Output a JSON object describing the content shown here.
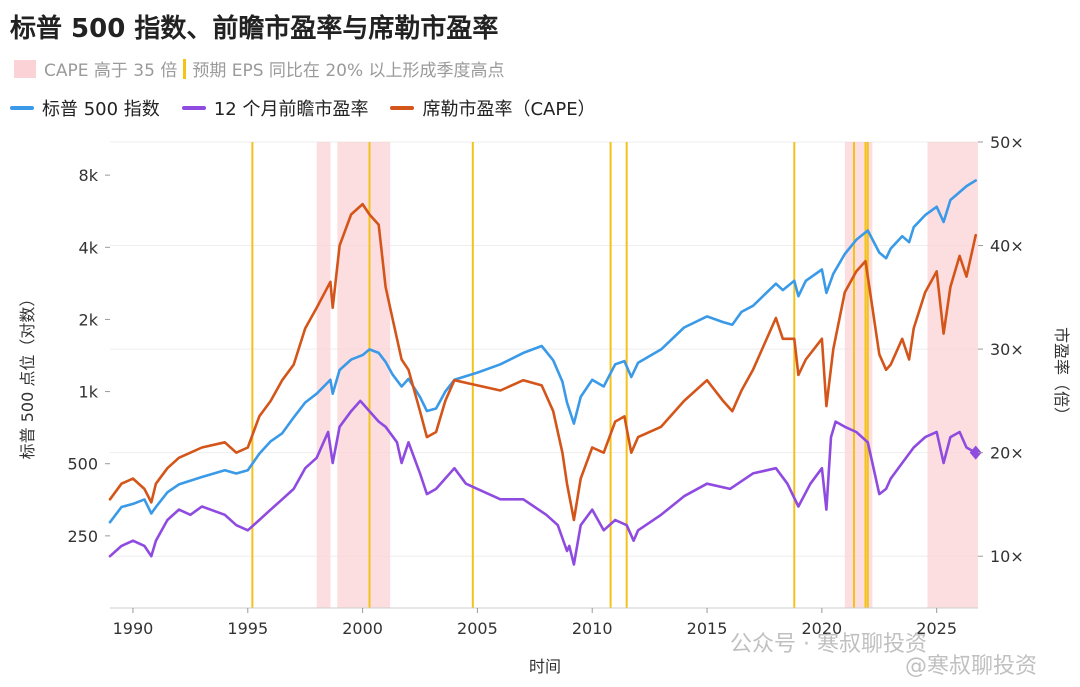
{
  "colors": {
    "sp500": "#3a9ae8",
    "forward_pe": "#8f4be0",
    "cape": "#d4551a",
    "cape_shade": "#fbd3d6",
    "eps_marker": "#f3c21b"
  },
  "watermark": {
    "line1": "公众号 · 寒叔聊投资",
    "line2": "@寒叔聊投资"
  },
  "chart_data": {
    "type": "line",
    "title": "标普 500 指数、前瞻市盈率与席勒市盈率",
    "subtitle": {
      "shade_label": "CAPE 高于 35 倍",
      "marker_label": "预期 EPS 同比在 20% 以上形成季度高点"
    },
    "xlabel": "时间",
    "ylabel_left": "标普 500 点位（对数）",
    "ylabel_right": "市盈率（倍）",
    "xlim": [
      1989.0,
      2026.8
    ],
    "y_left": {
      "scale": "log",
      "lim": [
        125,
        11000
      ],
      "ticks": [
        250,
        500,
        1000,
        2000,
        4000,
        8000
      ],
      "tick_labels": [
        "250",
        "500",
        "1k",
        "2k",
        "4k",
        "8k"
      ]
    },
    "y_right": {
      "scale": "linear",
      "lim": [
        5,
        50
      ],
      "ticks": [
        10,
        20,
        30,
        40,
        50
      ],
      "tick_labels": [
        "10×",
        "20×",
        "30×",
        "40×",
        "50×"
      ]
    },
    "x_ticks": [
      1990,
      1995,
      2000,
      2005,
      2010,
      2015,
      2020,
      2025
    ],
    "x_tick_labels": [
      "1990",
      "1995",
      "2000",
      "2005",
      "2010",
      "2015",
      "2020",
      "2025"
    ],
    "cape_above_35_periods": [
      [
        1998.0,
        1998.6
      ],
      [
        1998.9,
        2001.2
      ],
      [
        2021.0,
        2022.2
      ],
      [
        2024.6,
        2026.8
      ]
    ],
    "eps_peak_markers": [
      1995.2,
      2000.3,
      2004.8,
      2010.8,
      2011.5,
      2018.8,
      2021.4,
      2021.9,
      2022.0
    ],
    "legend": [
      "标普 500 指数",
      "12 个月前瞻市盈率",
      "席勒市盈率（CAPE）"
    ],
    "series": [
      {
        "name": "标普 500 指数",
        "axis": "left",
        "color_key": "sp500",
        "points": [
          [
            1989.0,
            285
          ],
          [
            1989.5,
            330
          ],
          [
            1990.0,
            340
          ],
          [
            1990.5,
            355
          ],
          [
            1990.8,
            310
          ],
          [
            1991.0,
            330
          ],
          [
            1991.5,
            380
          ],
          [
            1992.0,
            410
          ],
          [
            1993.0,
            440
          ],
          [
            1994.0,
            470
          ],
          [
            1994.5,
            455
          ],
          [
            1995.0,
            470
          ],
          [
            1995.5,
            550
          ],
          [
            1996.0,
            620
          ],
          [
            1996.5,
            670
          ],
          [
            1997.0,
            780
          ],
          [
            1997.5,
            900
          ],
          [
            1998.0,
            980
          ],
          [
            1998.6,
            1120
          ],
          [
            1998.7,
            980
          ],
          [
            1999.0,
            1230
          ],
          [
            1999.5,
            1360
          ],
          [
            2000.0,
            1420
          ],
          [
            2000.3,
            1500
          ],
          [
            2000.7,
            1450
          ],
          [
            2001.0,
            1330
          ],
          [
            2001.3,
            1180
          ],
          [
            2001.7,
            1050
          ],
          [
            2002.0,
            1130
          ],
          [
            2002.5,
            950
          ],
          [
            2002.8,
            830
          ],
          [
            2003.2,
            850
          ],
          [
            2003.6,
            1000
          ],
          [
            2004.0,
            1120
          ],
          [
            2005.0,
            1200
          ],
          [
            2006.0,
            1300
          ],
          [
            2007.0,
            1450
          ],
          [
            2007.8,
            1550
          ],
          [
            2008.3,
            1350
          ],
          [
            2008.7,
            1100
          ],
          [
            2008.9,
            900
          ],
          [
            2009.2,
            735
          ],
          [
            2009.5,
            950
          ],
          [
            2010.0,
            1120
          ],
          [
            2010.5,
            1050
          ],
          [
            2011.0,
            1300
          ],
          [
            2011.4,
            1340
          ],
          [
            2011.7,
            1150
          ],
          [
            2012.0,
            1320
          ],
          [
            2013.0,
            1500
          ],
          [
            2014.0,
            1850
          ],
          [
            2015.0,
            2060
          ],
          [
            2015.7,
            1950
          ],
          [
            2016.1,
            1900
          ],
          [
            2016.5,
            2150
          ],
          [
            2017.0,
            2280
          ],
          [
            2018.0,
            2820
          ],
          [
            2018.3,
            2650
          ],
          [
            2018.8,
            2900
          ],
          [
            2018.98,
            2500
          ],
          [
            2019.3,
            2900
          ],
          [
            2020.0,
            3230
          ],
          [
            2020.2,
            2580
          ],
          [
            2020.5,
            3100
          ],
          [
            2021.0,
            3750
          ],
          [
            2021.5,
            4300
          ],
          [
            2022.0,
            4700
          ],
          [
            2022.5,
            3800
          ],
          [
            2022.8,
            3600
          ],
          [
            2023.0,
            3950
          ],
          [
            2023.5,
            4450
          ],
          [
            2023.8,
            4200
          ],
          [
            2024.0,
            4850
          ],
          [
            2024.5,
            5450
          ],
          [
            2025.0,
            5900
          ],
          [
            2025.3,
            5100
          ],
          [
            2025.6,
            6300
          ],
          [
            2026.0,
            6800
          ],
          [
            2026.3,
            7200
          ],
          [
            2026.7,
            7600
          ]
        ]
      },
      {
        "name": "12 个月前瞻市盈率",
        "axis": "right",
        "color_key": "forward_pe",
        "points": [
          [
            1989.0,
            10
          ],
          [
            1989.5,
            11
          ],
          [
            1990.0,
            11.5
          ],
          [
            1990.5,
            11
          ],
          [
            1990.8,
            10
          ],
          [
            1991.0,
            11.5
          ],
          [
            1991.5,
            13.5
          ],
          [
            1992.0,
            14.5
          ],
          [
            1992.5,
            14
          ],
          [
            1993.0,
            14.8
          ],
          [
            1994.0,
            14
          ],
          [
            1994.5,
            13
          ],
          [
            1995.0,
            12.5
          ],
          [
            1995.5,
            13.5
          ],
          [
            1996.0,
            14.5
          ],
          [
            1996.5,
            15.5
          ],
          [
            1997.0,
            16.5
          ],
          [
            1997.5,
            18.5
          ],
          [
            1998.0,
            19.5
          ],
          [
            1998.5,
            22
          ],
          [
            1998.7,
            19
          ],
          [
            1999.0,
            22.5
          ],
          [
            1999.5,
            24
          ],
          [
            1999.9,
            25
          ],
          [
            2000.3,
            24
          ],
          [
            2000.7,
            23
          ],
          [
            2001.0,
            22.5
          ],
          [
            2001.5,
            21
          ],
          [
            2001.7,
            19
          ],
          [
            2002.0,
            21
          ],
          [
            2002.5,
            18
          ],
          [
            2002.8,
            16
          ],
          [
            2003.2,
            16.5
          ],
          [
            2004.0,
            18.5
          ],
          [
            2004.5,
            17
          ],
          [
            2005.0,
            16.5
          ],
          [
            2006.0,
            15.5
          ],
          [
            2007.0,
            15.5
          ],
          [
            2008.0,
            14
          ],
          [
            2008.5,
            13
          ],
          [
            2008.9,
            10.5
          ],
          [
            2009.0,
            11
          ],
          [
            2009.2,
            9.2
          ],
          [
            2009.5,
            13
          ],
          [
            2010.0,
            14.5
          ],
          [
            2010.5,
            12.5
          ],
          [
            2011.0,
            13.5
          ],
          [
            2011.5,
            13
          ],
          [
            2011.8,
            11.5
          ],
          [
            2012.0,
            12.5
          ],
          [
            2013.0,
            14
          ],
          [
            2014.0,
            15.8
          ],
          [
            2015.0,
            17
          ],
          [
            2016.0,
            16.5
          ],
          [
            2017.0,
            18
          ],
          [
            2018.0,
            18.5
          ],
          [
            2018.5,
            17
          ],
          [
            2018.98,
            14.8
          ],
          [
            2019.5,
            17
          ],
          [
            2020.0,
            18.5
          ],
          [
            2020.2,
            14.5
          ],
          [
            2020.4,
            21.5
          ],
          [
            2020.6,
            23
          ],
          [
            2021.0,
            22.5
          ],
          [
            2021.5,
            22
          ],
          [
            2022.0,
            21
          ],
          [
            2022.3,
            18
          ],
          [
            2022.5,
            16
          ],
          [
            2022.8,
            16.5
          ],
          [
            2023.0,
            17.5
          ],
          [
            2023.5,
            19
          ],
          [
            2024.0,
            20.5
          ],
          [
            2024.5,
            21.5
          ],
          [
            2025.0,
            22
          ],
          [
            2025.3,
            19
          ],
          [
            2025.6,
            21.5
          ],
          [
            2026.0,
            22
          ],
          [
            2026.3,
            20.5
          ],
          [
            2026.7,
            20
          ]
        ]
      },
      {
        "name": "席勒市盈率（CAPE）",
        "axis": "right",
        "color_key": "cape",
        "points": [
          [
            1989.0,
            15.5
          ],
          [
            1989.5,
            17
          ],
          [
            1990.0,
            17.5
          ],
          [
            1990.5,
            16.5
          ],
          [
            1990.8,
            15.2
          ],
          [
            1991.0,
            17
          ],
          [
            1991.5,
            18.5
          ],
          [
            1992.0,
            19.5
          ],
          [
            1993.0,
            20.5
          ],
          [
            1994.0,
            21
          ],
          [
            1994.5,
            20
          ],
          [
            1995.0,
            20.5
          ],
          [
            1995.5,
            23.5
          ],
          [
            1996.0,
            25
          ],
          [
            1996.5,
            27
          ],
          [
            1997.0,
            28.5
          ],
          [
            1997.5,
            32
          ],
          [
            1998.0,
            34
          ],
          [
            1998.6,
            36.5
          ],
          [
            1998.7,
            34
          ],
          [
            1999.0,
            40
          ],
          [
            1999.5,
            43
          ],
          [
            2000.0,
            44
          ],
          [
            2000.3,
            43
          ],
          [
            2000.7,
            42
          ],
          [
            2001.0,
            36
          ],
          [
            2001.3,
            33
          ],
          [
            2001.7,
            29
          ],
          [
            2002.0,
            28
          ],
          [
            2002.5,
            24
          ],
          [
            2002.8,
            21.5
          ],
          [
            2003.2,
            22
          ],
          [
            2003.6,
            25
          ],
          [
            2004.0,
            27
          ],
          [
            2005.0,
            26.5
          ],
          [
            2006.0,
            26
          ],
          [
            2007.0,
            27
          ],
          [
            2007.8,
            26.5
          ],
          [
            2008.3,
            24
          ],
          [
            2008.7,
            20
          ],
          [
            2008.9,
            17
          ],
          [
            2009.2,
            13.5
          ],
          [
            2009.5,
            17.5
          ],
          [
            2010.0,
            20.5
          ],
          [
            2010.5,
            20
          ],
          [
            2011.0,
            23
          ],
          [
            2011.4,
            23.5
          ],
          [
            2011.7,
            20
          ],
          [
            2012.0,
            21.5
          ],
          [
            2013.0,
            22.5
          ],
          [
            2014.0,
            25
          ],
          [
            2015.0,
            27
          ],
          [
            2015.7,
            25
          ],
          [
            2016.1,
            24
          ],
          [
            2016.5,
            26
          ],
          [
            2017.0,
            28
          ],
          [
            2018.0,
            33
          ],
          [
            2018.3,
            31
          ],
          [
            2018.8,
            31
          ],
          [
            2018.98,
            27.5
          ],
          [
            2019.3,
            29
          ],
          [
            2020.0,
            31
          ],
          [
            2020.2,
            24.5
          ],
          [
            2020.5,
            30
          ],
          [
            2021.0,
            35.5
          ],
          [
            2021.5,
            37.5
          ],
          [
            2021.9,
            38.5
          ],
          [
            2022.2,
            34
          ],
          [
            2022.5,
            29.5
          ],
          [
            2022.8,
            28
          ],
          [
            2023.0,
            28.5
          ],
          [
            2023.5,
            31
          ],
          [
            2023.8,
            29
          ],
          [
            2024.0,
            32
          ],
          [
            2024.5,
            35.5
          ],
          [
            2025.0,
            37.5
          ],
          [
            2025.3,
            31.5
          ],
          [
            2025.6,
            36
          ],
          [
            2026.0,
            39
          ],
          [
            2026.3,
            37
          ],
          [
            2026.7,
            41
          ]
        ]
      }
    ]
  }
}
